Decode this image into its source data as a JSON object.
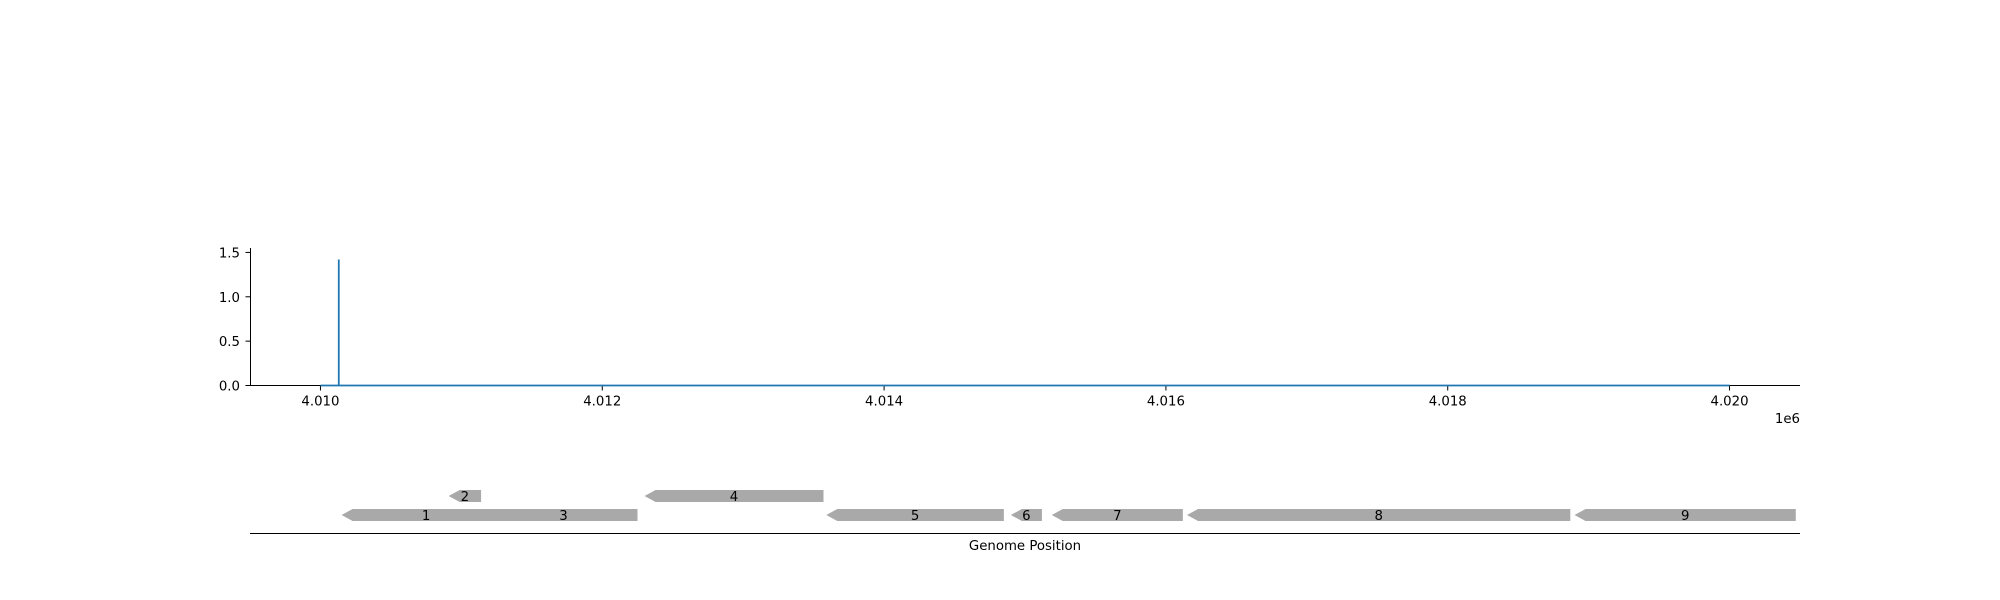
{
  "chart_data": [
    {
      "type": "line",
      "title": "",
      "xlabel": "",
      "ylabel": "",
      "x_offset_label": "1e6",
      "xlim": [
        4.0095,
        4.0205
      ],
      "ylim": [
        0,
        1.55
      ],
      "x_ticks": [
        4.01,
        4.012,
        4.014,
        4.016,
        4.018,
        4.02
      ],
      "x_tick_labels": [
        "4.010",
        "4.012",
        "4.014",
        "4.016",
        "4.018",
        "4.020"
      ],
      "y_ticks": [
        0.0,
        0.5,
        1.0,
        1.5
      ],
      "y_tick_labels": [
        "0.0",
        "0.5",
        "1.0",
        "1.5"
      ],
      "grid": false,
      "color": "#1f77b4",
      "series": [
        {
          "x": [
            4.01,
            4.01013,
            4.01013,
            4.01013,
            4.02
          ],
          "y": [
            0.0,
            0.0,
            1.42,
            0.0,
            0.0
          ]
        }
      ]
    },
    {
      "type": "gene-track",
      "xlabel": "Genome Position",
      "gene_color": "#a9a9a9",
      "genes": [
        {
          "label": "1",
          "start": 4.01015,
          "end": 4.01135,
          "strand": "-",
          "row": 0
        },
        {
          "label": "2",
          "start": 4.01091,
          "end": 4.01114,
          "strand": "-",
          "row": 1
        },
        {
          "label": "3",
          "start": 4.0112,
          "end": 4.01225,
          "strand": "-",
          "row": 0
        },
        {
          "label": "4",
          "start": 4.0123,
          "end": 4.01357,
          "strand": "-",
          "row": 1
        },
        {
          "label": "5",
          "start": 4.01359,
          "end": 4.01485,
          "strand": "-",
          "row": 0
        },
        {
          "label": "6",
          "start": 4.0149,
          "end": 4.01512,
          "strand": "-",
          "row": 0
        },
        {
          "label": "7",
          "start": 4.01519,
          "end": 4.01612,
          "strand": "-",
          "row": 0
        },
        {
          "label": "8",
          "start": 4.01615,
          "end": 4.01887,
          "strand": "-",
          "row": 0
        },
        {
          "label": "9",
          "start": 4.0189,
          "end": 4.02047,
          "strand": "-",
          "row": 0
        }
      ]
    }
  ]
}
